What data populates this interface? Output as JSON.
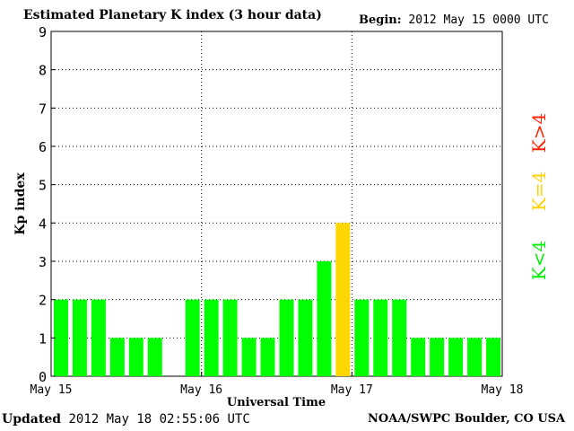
{
  "header": {
    "title": "Estimated Planetary K index (3 hour data)",
    "begin_label": "Begin:",
    "begin_value": "2012 May 15 0000 UTC"
  },
  "footer": {
    "updated_label": "Updated",
    "updated_value": "2012 May 18 02:55:06 UTC",
    "agency": "NOAA/SWPC Boulder, CO USA"
  },
  "legend": {
    "low": "K<4",
    "equal": "K=4",
    "high": "K>4"
  },
  "colors": {
    "low": "#00ff00",
    "equal": "#ffd700",
    "high": "#ff2200",
    "grid": "#000000"
  },
  "chart_data": {
    "type": "bar",
    "title": "Estimated Planetary K index (3 hour data)",
    "xlabel": "Universal Time",
    "ylabel": "Kp index",
    "ylim": [
      0,
      9
    ],
    "yticks": [
      "0",
      "1",
      "2",
      "3",
      "4",
      "5",
      "6",
      "7",
      "8",
      "9"
    ],
    "x_tick_labels": [
      "May 15",
      "May 16",
      "May 17",
      "May 18"
    ],
    "interval": "3 hour",
    "values": [
      2,
      2,
      2,
      1,
      1,
      1,
      0,
      2,
      2,
      2,
      1,
      1,
      2,
      2,
      3,
      4,
      2,
      2,
      2,
      1,
      1,
      1,
      1,
      1
    ],
    "grid": "dotted"
  }
}
